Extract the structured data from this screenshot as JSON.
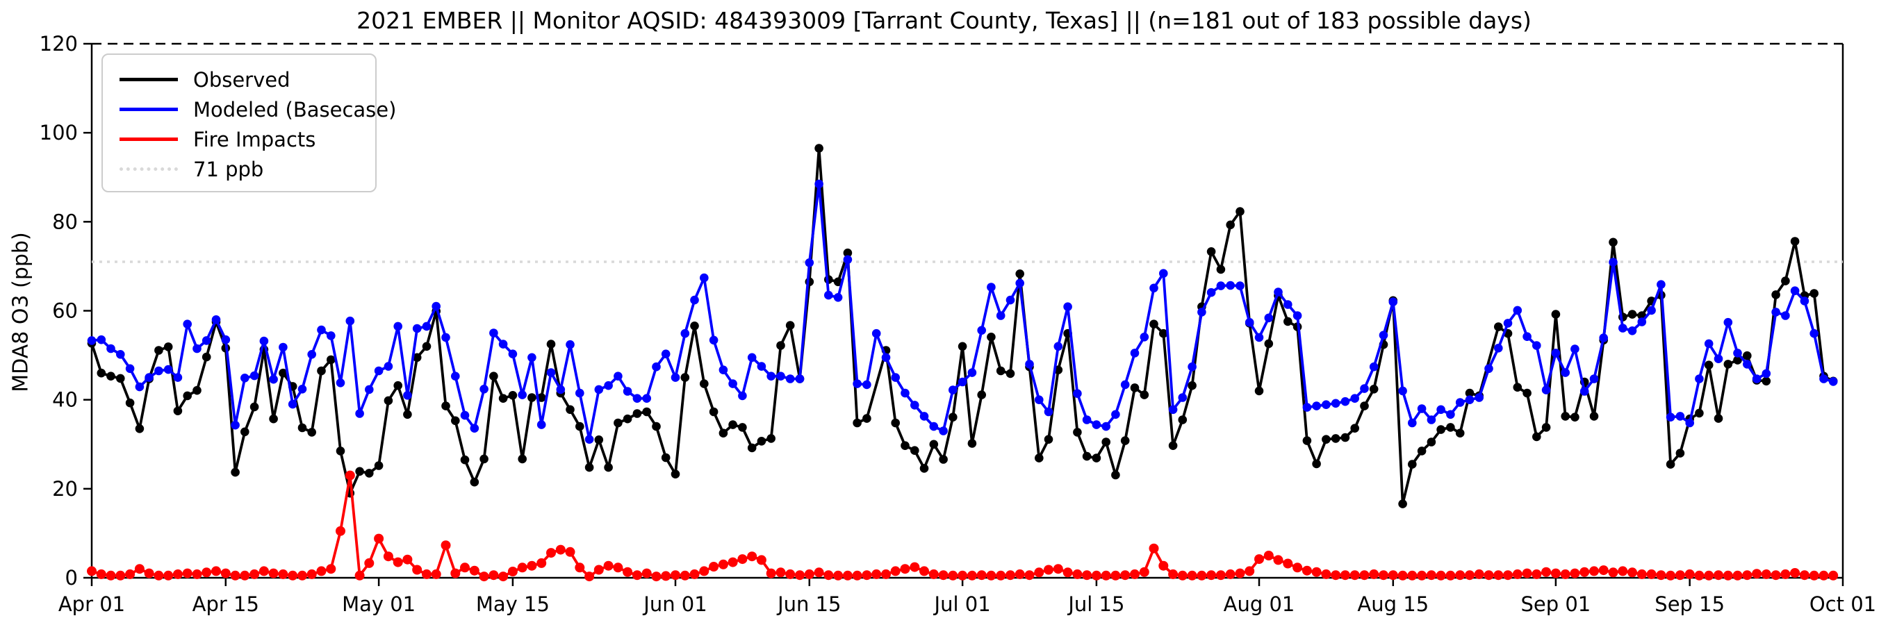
{
  "title": "2021 EMBER || Monitor AQSID: 484393009 [Tarrant County, Texas] || (n=181 out of 183 possible days)",
  "axes": {
    "ylabel": "MDA8 O3 (ppb)",
    "ylim": [
      0,
      120
    ],
    "yticks": [
      0,
      20,
      40,
      60,
      80,
      100,
      120
    ],
    "xtick_labels": [
      "Apr 01",
      "Apr 15",
      "May 01",
      "May 15",
      "Jun 01",
      "Jun 15",
      "Jul 01",
      "Jul 15",
      "Aug 01",
      "Aug 15",
      "Sep 01",
      "Sep 15",
      "Oct 01"
    ],
    "xtick_days": [
      0,
      14,
      30,
      44,
      61,
      75,
      91,
      105,
      122,
      136,
      153,
      167,
      183
    ]
  },
  "legend": {
    "items": [
      {
        "label": "Observed",
        "color": "#000000",
        "style": "solid"
      },
      {
        "label": "Modeled (Basecase)",
        "color": "#0000ff",
        "style": "solid"
      },
      {
        "label": "Fire Impacts",
        "color": "#ff0000",
        "style": "solid"
      },
      {
        "label": "71 ppb",
        "color": "#d9d9d9",
        "style": "dotted"
      }
    ]
  },
  "chart_data": {
    "type": "line",
    "title": "2021 EMBER || Monitor AQSID: 484393009 [Tarrant County, Texas] || (n=181 out of 183 possible days)",
    "xlabel": "",
    "ylabel": "MDA8 O3 (ppb)",
    "ylim": [
      0,
      120
    ],
    "grid": false,
    "legend_position": "upper left",
    "x_start": "Apr 01",
    "x_step": "1 day",
    "n_days": 183,
    "threshold": {
      "value": 71,
      "label": "71 ppb",
      "color": "#d9d9d9"
    },
    "series": [
      {
        "name": "Observed",
        "color": "#000000",
        "values": [
          52.7,
          46,
          45.3,
          44.8,
          39.3,
          33.5,
          44.7,
          51.1,
          51.9,
          37.5,
          40.9,
          42.1,
          49.6,
          57.5,
          51.6,
          23.7,
          32.8,
          38.4,
          51.3,
          35.7,
          46,
          43,
          33.7,
          32.7,
          46.5,
          49,
          28.5,
          19,
          23.9,
          23.5,
          25.2,
          39.8,
          43.2,
          36.7,
          49.5,
          52,
          59.9,
          38.6,
          35.3,
          26.5,
          21.5,
          26.7,
          45.3,
          40.3,
          41,
          26.7,
          40.5,
          40.5,
          52.5,
          41.5,
          37.8,
          34,
          24.8,
          31,
          24.8,
          34.8,
          35.7,
          36.9,
          37.3,
          34,
          27,
          23.3,
          45,
          56.6,
          43.6,
          37.3,
          32.5,
          34.4,
          33.8,
          29.2,
          30.7,
          31.3,
          52.2,
          56.7,
          44.7,
          66.5,
          96.5,
          67,
          66.5,
          73,
          34.8,
          35.8,
          null,
          51.1,
          34.8,
          29.7,
          28.6,
          24.6,
          30,
          26.6,
          36.1,
          52,
          30.2,
          41.1,
          54.1,
          46.5,
          45.9,
          68.3,
          47.4,
          26.9,
          31.1,
          46.7,
          54.9,
          32.7,
          27.3,
          26.9,
          30.5,
          23.1,
          30.8,
          42.7,
          41.1,
          57,
          54.9,
          29.7,
          35.5,
          43.2,
          60.9,
          73.3,
          69.3,
          79.3,
          82.3,
          57.2,
          42,
          52.6,
          63.4,
          57.6,
          56.4,
          30.8,
          25.6,
          31.1,
          31.3,
          31.5,
          33.6,
          38.6,
          42.4,
          52.4,
          62.3,
          16.6,
          25.5,
          28.5,
          30.5,
          33.3,
          33.8,
          32.5,
          41.5,
          40.9,
          null,
          56.4,
          54.9,
          42.8,
          41.5,
          31.7,
          33.8,
          59.2,
          36.3,
          36.1,
          44,
          36.3,
          53.4,
          75.4,
          58.6,
          59.2,
          58.9,
          62.2,
          63.5,
          25.5,
          28,
          35.7,
          37,
          47.8,
          35.8,
          48,
          48.9,
          49.9,
          44.4,
          44.2,
          63.6,
          66.7,
          75.6,
          63.4,
          63.9,
          45.3,
          44.2
        ]
      },
      {
        "name": "Modeled (Basecase)",
        "color": "#0000ff",
        "values": [
          53.3,
          53.5,
          51.5,
          50.2,
          47,
          42.9,
          45,
          46.5,
          46.8,
          45,
          57,
          51.5,
          53.3,
          58,
          53.5,
          34.3,
          44.9,
          45.4,
          53.2,
          44.6,
          51.8,
          39,
          42.4,
          50.2,
          55.7,
          54.4,
          43.8,
          57.7,
          36.9,
          42.3,
          46.5,
          47.5,
          56.5,
          41,
          56,
          56.5,
          61,
          54,
          45.3,
          36.5,
          33.6,
          42.4,
          55,
          52.5,
          50.3,
          41.1,
          49.5,
          34.4,
          46.1,
          42.3,
          52.4,
          41.5,
          31.1,
          42.3,
          43.2,
          45.3,
          41.9,
          40.3,
          40.3,
          47.4,
          50.3,
          45,
          54.9,
          62.4,
          67.4,
          53.4,
          46.7,
          43.6,
          40.9,
          49.5,
          47.5,
          45.3,
          45.3,
          44.7,
          44.7,
          70.8,
          88.5,
          63.5,
          63,
          71.5,
          43.6,
          43.4,
          54.9,
          49.5,
          45,
          41.5,
          38.8,
          36.3,
          34,
          33,
          42.2,
          44,
          46.1,
          55.6,
          65.3,
          58.9,
          62.4,
          66.2,
          48,
          40,
          37.3,
          52,
          60.9,
          41.4,
          35.5,
          34.4,
          34,
          36.7,
          43.4,
          50.5,
          54.1,
          65.1,
          68.4,
          37.8,
          40.5,
          47.4,
          59.7,
          64.1,
          65.6,
          65.7,
          65.6,
          57.4,
          54,
          58.4,
          64.2,
          61.4,
          58.9,
          38.3,
          38.6,
          38.9,
          39.2,
          39.6,
          40.3,
          42.5,
          47.4,
          54.5,
          62,
          42,
          34.8,
          38,
          35.5,
          37.8,
          36.7,
          39.4,
          40,
          40.5,
          47,
          51.6,
          57.2,
          60.1,
          54.2,
          52.2,
          42.2,
          50.5,
          46.1,
          51.4,
          41.9,
          44.7,
          53.9,
          70.9,
          56.1,
          55.5,
          57.5,
          60.1,
          65.9,
          36.1,
          36.3,
          34.8,
          44.7,
          52.6,
          49.2,
          57.4,
          50.5,
          48,
          44.7,
          45.9,
          59.7,
          58.9,
          64.5,
          62.2,
          54.9,
          44.7,
          44.1
        ]
      },
      {
        "name": "Fire Impacts",
        "color": "#ff0000",
        "values": [
          1.5,
          0.8,
          0.5,
          0.5,
          0.8,
          2,
          1,
          0.5,
          0.5,
          0.8,
          1,
          0.8,
          1.2,
          1.5,
          1,
          0.5,
          0.5,
          0.8,
          1.5,
          1,
          0.8,
          0.5,
          0.5,
          0.8,
          1.5,
          2,
          10.5,
          23,
          0.5,
          3.3,
          8.8,
          4.8,
          3.5,
          4.1,
          1.8,
          0.8,
          0.8,
          7.3,
          1,
          2.3,
          1.6,
          0.3,
          0.6,
          0.3,
          1.4,
          2.3,
          2.7,
          3.3,
          5.6,
          6.3,
          5.8,
          2.3,
          0.3,
          1.8,
          2.7,
          2.3,
          1.3,
          0.6,
          1,
          0.3,
          0.4,
          0.6,
          0.5,
          0.8,
          1.5,
          2.5,
          3,
          3.5,
          4.2,
          4.8,
          4,
          1,
          1.2,
          0.8,
          0.6,
          0.8,
          1.2,
          0.6,
          0.5,
          0.5,
          0.5,
          0.6,
          0.8,
          0.8,
          1.5,
          2,
          2.4,
          1.5,
          0.8,
          0.6,
          0.5,
          0.5,
          0.5,
          0.6,
          0.5,
          0.5,
          0.6,
          0.8,
          0.6,
          1.2,
          1.8,
          2,
          1.2,
          0.8,
          0.6,
          0.5,
          0.5,
          0.5,
          0.6,
          0.8,
          1.3,
          6.6,
          2.7,
          0.8,
          0.5,
          0.5,
          0.5,
          0.6,
          0.6,
          0.8,
          1,
          1.5,
          4.2,
          5,
          4,
          3.2,
          2.3,
          1.6,
          1.3,
          0.8,
          0.6,
          0.6,
          0.6,
          0.6,
          0.8,
          0.6,
          0.6,
          0.5,
          0.5,
          0.5,
          0.6,
          0.5,
          0.5,
          0.6,
          0.6,
          0.8,
          0.6,
          0.6,
          0.6,
          0.8,
          1,
          0.8,
          1.3,
          1,
          0.8,
          1,
          1.3,
          1.5,
          1.7,
          1.2,
          1.5,
          1.2,
          0.8,
          0.8,
          0.6,
          0.5,
          0.6,
          0.8,
          0.5,
          0.5,
          0.6,
          0.5,
          0.5,
          0.6,
          0.9,
          0.8,
          0.6,
          0.8,
          1.1,
          0.6,
          0.5,
          0.5,
          0.5
        ]
      }
    ]
  }
}
